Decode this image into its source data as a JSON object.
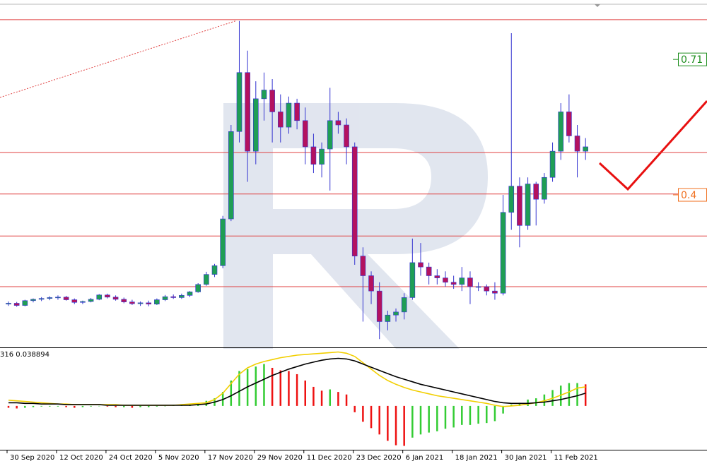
{
  "chart_data": [
    {
      "type": "candlestick",
      "categories": [
        "30 Sep 2020",
        null,
        null,
        null,
        null,
        null,
        "12 Oct 2020",
        null,
        null,
        null,
        null,
        null,
        "24 Oct 2020",
        null,
        null,
        null,
        null,
        null,
        "5 Nov 2020",
        null,
        null,
        null,
        null,
        null,
        "17 Nov 2020",
        null,
        null,
        null,
        null,
        null,
        "29 Nov 2020",
        null,
        null,
        null,
        null,
        null,
        "11 Dec 2020",
        null,
        null,
        null,
        null,
        null,
        "23 Dec 2020",
        null,
        null,
        null,
        null,
        null,
        "6 Jan 2021",
        null,
        null,
        null,
        null,
        null,
        "18 Jan 2021",
        null,
        null,
        null,
        null,
        null,
        "30 Jan 2021",
        null,
        null,
        null,
        null,
        null,
        "11 Feb 2021",
        null,
        null,
        null,
        null
      ],
      "open": [
        0.15,
        0.152,
        0.147,
        0.158,
        0.161,
        0.163,
        0.165,
        0.166,
        0.16,
        0.154,
        0.156,
        0.161,
        0.171,
        0.166,
        0.161,
        0.155,
        0.151,
        0.153,
        0.15,
        0.16,
        0.167,
        0.165,
        0.17,
        0.178,
        0.195,
        0.218,
        0.238,
        0.345,
        0.545,
        0.68,
        0.5,
        0.62,
        0.64,
        0.59,
        0.555,
        0.61,
        0.57,
        0.51,
        0.47,
        0.505,
        0.57,
        0.56,
        0.51,
        0.26,
        0.215,
        0.18,
        0.11,
        0.125,
        0.132,
        0.165,
        0.245,
        0.235,
        0.215,
        0.21,
        0.2,
        0.195,
        0.21,
        0.19,
        0.19,
        0.18,
        0.175,
        0.36,
        0.42,
        0.33,
        0.425,
        0.39,
        0.44,
        0.5,
        0.59,
        0.535,
        0.5
      ],
      "high": [
        0.156,
        0.155,
        0.16,
        0.163,
        0.166,
        0.168,
        0.17,
        0.169,
        0.163,
        0.158,
        0.164,
        0.173,
        0.174,
        0.17,
        0.165,
        0.16,
        0.156,
        0.158,
        0.163,
        0.171,
        0.172,
        0.174,
        0.18,
        0.198,
        0.224,
        0.242,
        0.352,
        0.56,
        0.798,
        0.73,
        0.66,
        0.68,
        0.665,
        0.63,
        0.625,
        0.62,
        0.6,
        0.54,
        0.52,
        0.645,
        0.59,
        0.575,
        0.52,
        0.28,
        0.225,
        0.2,
        0.135,
        0.14,
        0.175,
        0.3,
        0.29,
        0.245,
        0.23,
        0.225,
        0.215,
        0.235,
        0.225,
        0.2,
        0.195,
        0.2,
        0.4,
        0.77,
        0.44,
        0.44,
        0.43,
        0.45,
        0.52,
        0.61,
        0.63,
        0.56,
        0.53
      ],
      "low": [
        0.146,
        0.144,
        0.145,
        0.154,
        0.157,
        0.159,
        0.16,
        0.158,
        0.15,
        0.15,
        0.154,
        0.159,
        0.163,
        0.158,
        0.152,
        0.148,
        0.146,
        0.145,
        0.148,
        0.157,
        0.162,
        0.162,
        0.166,
        0.176,
        0.192,
        0.212,
        0.232,
        0.34,
        0.52,
        0.43,
        0.47,
        0.57,
        0.52,
        0.52,
        0.54,
        0.55,
        0.47,
        0.45,
        0.44,
        0.41,
        0.54,
        0.47,
        0.24,
        0.11,
        0.15,
        0.07,
        0.09,
        0.11,
        0.115,
        0.16,
        0.215,
        0.195,
        0.195,
        0.19,
        0.185,
        0.18,
        0.15,
        0.18,
        0.17,
        0.16,
        0.17,
        0.32,
        0.28,
        0.32,
        0.33,
        0.38,
        0.43,
        0.48,
        0.52,
        0.44,
        0.48
      ],
      "close": [
        0.152,
        0.147,
        0.158,
        0.161,
        0.163,
        0.165,
        0.166,
        0.16,
        0.154,
        0.156,
        0.161,
        0.171,
        0.166,
        0.161,
        0.155,
        0.151,
        0.153,
        0.15,
        0.16,
        0.167,
        0.165,
        0.17,
        0.178,
        0.195,
        0.218,
        0.238,
        0.345,
        0.545,
        0.68,
        0.5,
        0.62,
        0.64,
        0.59,
        0.555,
        0.61,
        0.57,
        0.51,
        0.47,
        0.505,
        0.57,
        0.56,
        0.51,
        0.26,
        0.215,
        0.18,
        0.11,
        0.125,
        0.132,
        0.165,
        0.245,
        0.235,
        0.215,
        0.21,
        0.2,
        0.195,
        0.21,
        0.19,
        0.19,
        0.18,
        0.175,
        0.36,
        0.42,
        0.33,
        0.425,
        0.39,
        0.44,
        0.5,
        0.59,
        0.535,
        0.5,
        0.51
      ],
      "up_color": "#1f9e55",
      "down_color": "#b3125f",
      "wick_color": "#3434d0",
      "ylim": [
        0.051,
        0.846
      ],
      "levels": [
        0.801,
        0.497,
        0.402,
        0.306,
        0.19
      ],
      "level_color": "#e04040",
      "trendline": [
        0.623,
        0.798
      ],
      "price_labels": [
        0.71,
        0.4
      ],
      "price_label_colors": [
        "#1f8f1f",
        "#f07020"
      ]
    },
    {
      "type": "macd",
      "indicator_label": "316 0.038894",
      "histogram": [
        -0.003,
        -0.004,
        -0.003,
        -0.002,
        -0.001,
        -0.001,
        -0.001,
        -0.002,
        -0.003,
        -0.002,
        -0.001,
        0,
        -0.001,
        -0.002,
        -0.002,
        -0.003,
        -0.002,
        -0.002,
        -0.001,
        0,
        0.001,
        0.001,
        0.002,
        0.004,
        0.008,
        0.012,
        0.022,
        0.04,
        0.055,
        0.058,
        0.062,
        0.066,
        0.06,
        0.056,
        0.055,
        0.05,
        0.04,
        0.03,
        0.024,
        0.026,
        0.022,
        0.018,
        -0.01,
        -0.025,
        -0.035,
        -0.045,
        -0.055,
        -0.062,
        -0.063,
        -0.05,
        -0.045,
        -0.042,
        -0.04,
        -0.036,
        -0.034,
        -0.03,
        -0.03,
        -0.028,
        -0.027,
        -0.024,
        -0.012,
        0.002,
        0.005,
        0.01,
        0.012,
        0.018,
        0.025,
        0.032,
        0.036,
        0.036,
        0.034
      ],
      "rising_color": "#33cc33",
      "falling_color": "#ee1111",
      "lines": [
        {
          "color": "#f2cf00",
          "values": [
            0.009,
            0.008,
            0.007,
            0.006,
            0.005,
            0.004,
            0.003,
            0.003,
            0.002,
            0.002,
            0.002,
            0.002,
            0.002,
            0.002,
            0.001,
            0.001,
            0.001,
            0.001,
            0.001,
            0.001,
            0.001,
            0.002,
            0.003,
            0.004,
            0.005,
            0.01,
            0.02,
            0.035,
            0.05,
            0.06,
            0.066,
            0.07,
            0.073,
            0.076,
            0.078,
            0.08,
            0.081,
            0.082,
            0.083,
            0.084,
            0.085,
            0.083,
            0.078,
            0.068,
            0.058,
            0.048,
            0.04,
            0.034,
            0.029,
            0.025,
            0.022,
            0.019,
            0.016,
            0.014,
            0.012,
            0.01,
            0.008,
            0.006,
            0.004,
            0.001,
            -0.001,
            0.0,
            0.001,
            0.003,
            0.005,
            0.008,
            0.012,
            0.017,
            0.022,
            0.028,
            0.03
          ]
        },
        {
          "color": "#000000",
          "values": [
            0.005,
            0.005,
            0.004,
            0.004,
            0.003,
            0.003,
            0.003,
            0.002,
            0.002,
            0.002,
            0.002,
            0.002,
            0.001,
            0.001,
            0.001,
            0.001,
            0.001,
            0.001,
            0.001,
            0.001,
            0.001,
            0.001,
            0.001,
            0.002,
            0.003,
            0.006,
            0.01,
            0.016,
            0.023,
            0.03,
            0.036,
            0.042,
            0.048,
            0.053,
            0.058,
            0.062,
            0.066,
            0.069,
            0.072,
            0.074,
            0.075,
            0.074,
            0.071,
            0.066,
            0.061,
            0.056,
            0.051,
            0.046,
            0.042,
            0.038,
            0.034,
            0.031,
            0.028,
            0.025,
            0.022,
            0.019,
            0.016,
            0.013,
            0.01,
            0.007,
            0.005,
            0.004,
            0.004,
            0.004,
            0.005,
            0.006,
            0.008,
            0.01,
            0.013,
            0.016,
            0.02
          ]
        }
      ],
      "ylim": [
        -0.068,
        0.09
      ]
    }
  ]
}
